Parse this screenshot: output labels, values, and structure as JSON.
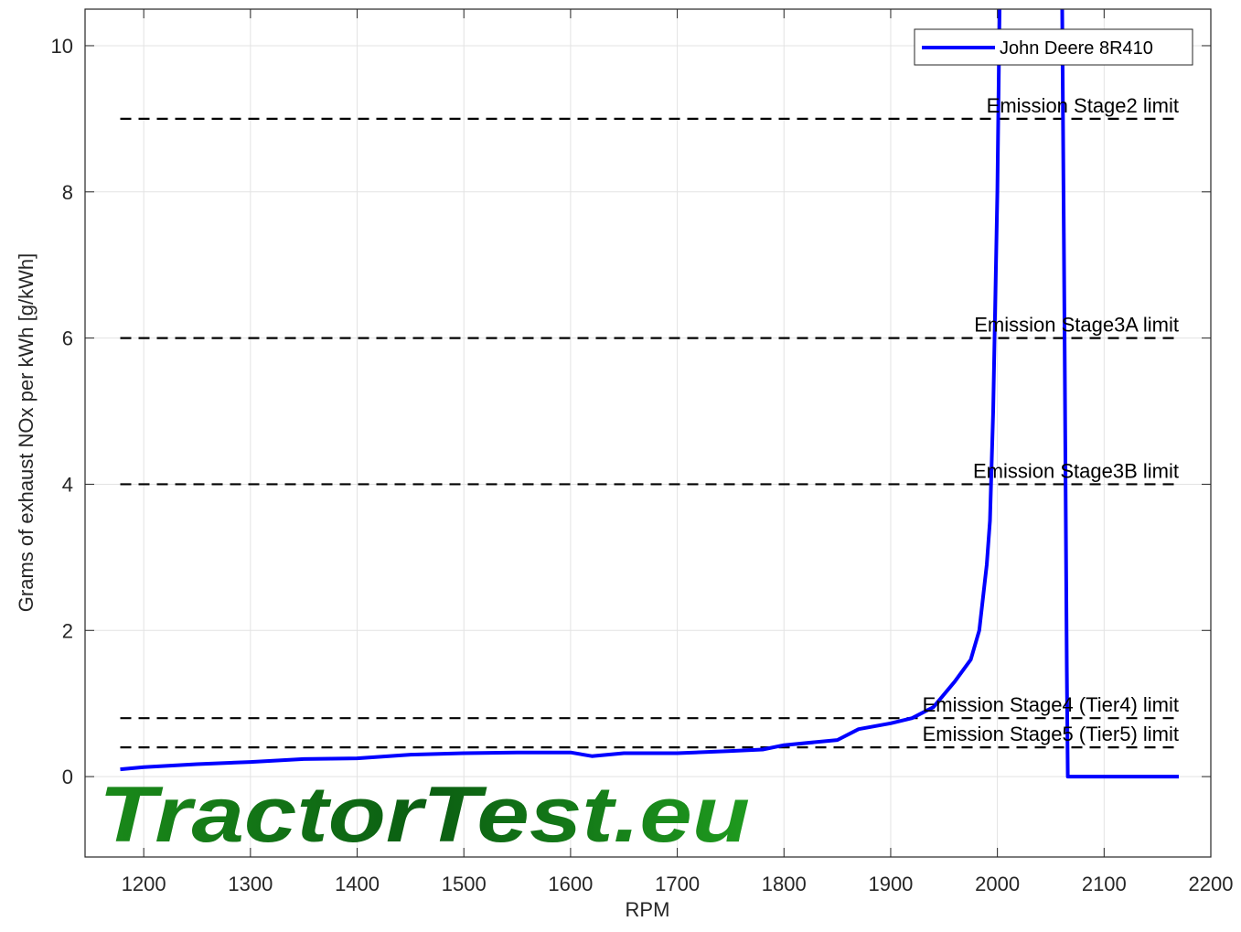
{
  "chart_data": {
    "type": "line",
    "x_label": "RPM",
    "y_label": "Grams of exhaust NOx per kWh [g/kWh]",
    "xlim": [
      1145,
      2200
    ],
    "ylim": [
      -1.1,
      10.5
    ],
    "xticks": [
      1200,
      1300,
      1400,
      1500,
      1600,
      1700,
      1800,
      1900,
      2000,
      2100,
      2200
    ],
    "yticks": [
      0,
      2,
      4,
      6,
      8,
      10
    ],
    "grid": true,
    "legend": "northeast",
    "x": [
      1178,
      1200,
      1250,
      1300,
      1350,
      1400,
      1450,
      1500,
      1550,
      1600,
      1620,
      1650,
      1700,
      1750,
      1780,
      1800,
      1850,
      1870,
      1900,
      1920,
      1940,
      1960,
      1975,
      1983,
      1990,
      1993,
      1996,
      2000,
      2002,
      2005,
      2060,
      2063,
      2065,
      2066,
      2100,
      2170
    ],
    "series": [
      {
        "name": "John Deere 8R410",
        "color": "#0000ff",
        "values": [
          0.1,
          0.13,
          0.17,
          0.2,
          0.24,
          0.25,
          0.3,
          0.32,
          0.33,
          0.33,
          0.28,
          0.32,
          0.32,
          0.35,
          0.37,
          0.43,
          0.5,
          0.65,
          0.73,
          0.8,
          0.95,
          1.3,
          1.6,
          2.0,
          2.9,
          3.5,
          5.0,
          8.0,
          10.5,
          12,
          12,
          6,
          1.5,
          0,
          0,
          0
        ]
      }
    ],
    "limits": [
      {
        "label": "Emission Stage2 limit",
        "value": 9
      },
      {
        "label": "Emission Stage3A limit",
        "value": 6
      },
      {
        "label": "Emission Stage3B limit",
        "value": 4
      },
      {
        "label": "Emission Stage4 (Tier4) limit",
        "value": 0.8
      },
      {
        "label": "Emission Stage5 (Tier5) limit",
        "value": 0.4
      }
    ],
    "watermark": "TractorTest.eu"
  }
}
